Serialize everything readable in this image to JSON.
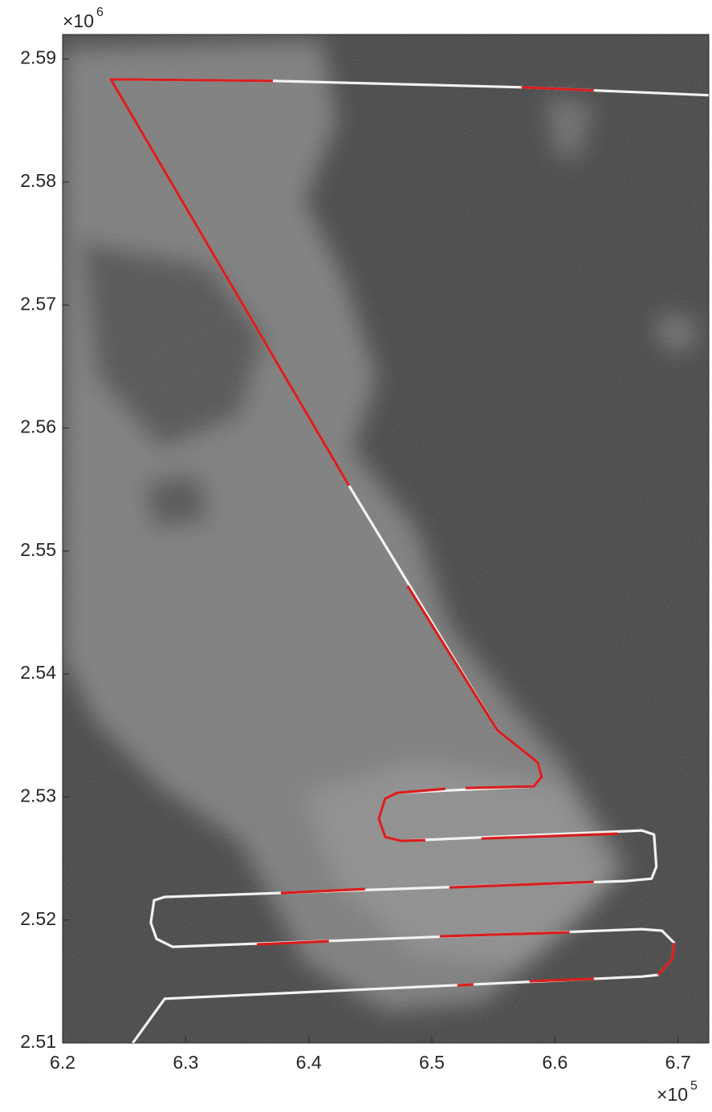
{
  "chart_data": {
    "type": "line",
    "x_multiplier": {
      "base": "×10",
      "exponent": "5"
    },
    "y_multiplier": {
      "base": "×10",
      "exponent": "6"
    },
    "xlim": [
      620000,
      672500
    ],
    "ylim": [
      2510000,
      2592000
    ],
    "xticks": [
      {
        "value": 620000,
        "label": "6.2"
      },
      {
        "value": 630000,
        "label": "6.3"
      },
      {
        "value": 640000,
        "label": "6.4"
      },
      {
        "value": 650000,
        "label": "6.5"
      },
      {
        "value": 660000,
        "label": "6.6"
      },
      {
        "value": 670000,
        "label": "6.7"
      }
    ],
    "yticks": [
      {
        "value": 2510000,
        "label": "2.51"
      },
      {
        "value": 2520000,
        "label": "2.52"
      },
      {
        "value": 2530000,
        "label": "2.53"
      },
      {
        "value": 2540000,
        "label": "2.54"
      },
      {
        "value": 2550000,
        "label": "2.55"
      },
      {
        "value": 2560000,
        "label": "2.56"
      },
      {
        "value": 2570000,
        "label": "2.57"
      },
      {
        "value": 2580000,
        "label": "2.58"
      },
      {
        "value": 2590000,
        "label": "2.59"
      }
    ],
    "grid": false,
    "series": [
      {
        "color": "#f2f2f2",
        "x": [
          625700,
          628300,
          667100,
          668370,
          669550,
          669680,
          668700,
          667070,
          628930,
          627630,
          627170,
          627430,
          628280,
          665760,
          667850,
          668240,
          668050,
          667070,
          647510,
          646210,
          645690,
          646210,
          647190,
          658270,
          658920,
          658600,
          655330,
          643270,
          623910,
          637080,
          657290,
          672480
        ],
        "y": [
          2510000,
          2513600,
          2515400,
          2515540,
          2516840,
          2518150,
          2519130,
          2519260,
          2517820,
          2518470,
          2519780,
          2521600,
          2521870,
          2523170,
          2523360,
          2524340,
          2526950,
          2527280,
          2526430,
          2526750,
          2528250,
          2529880,
          2530340,
          2530860,
          2531640,
          2532820,
          2535420,
          2555310,
          2588360,
          2588230,
          2587710,
          2587060
        ]
      },
      {
        "color": "#d81e1e",
        "x": [
          637080,
          623910,
          643270,
          null,
          657290,
          663160,
          null,
          648030,
          655330,
          658600,
          658920,
          658270,
          652730,
          null,
          651100,
          647190,
          646210,
          645690,
          646210,
          647510,
          649470,
          null,
          654030,
          665110,
          null,
          637730,
          644580,
          null,
          651420,
          663160,
          null,
          635780,
          641640,
          null,
          650640,
          661200,
          null,
          669680,
          669550,
          668370,
          null,
          652070,
          653380,
          null,
          657940,
          663160
        ],
        "y": [
          2588230,
          2588360,
          2555310,
          null,
          2587710,
          2587450,
          null,
          2547160,
          2535420,
          2532820,
          2531640,
          2530860,
          2530730,
          null,
          2530670,
          2530340,
          2529880,
          2528250,
          2526750,
          2526430,
          2526490,
          null,
          2526620,
          2527020,
          null,
          2522190,
          2522520,
          null,
          2522650,
          2523100,
          null,
          2518020,
          2518280,
          null,
          2518670,
          2519000,
          null,
          2518150,
          2516840,
          2515540,
          null,
          2514690,
          2514760,
          null,
          2515020,
          2515220
        ]
      }
    ]
  }
}
